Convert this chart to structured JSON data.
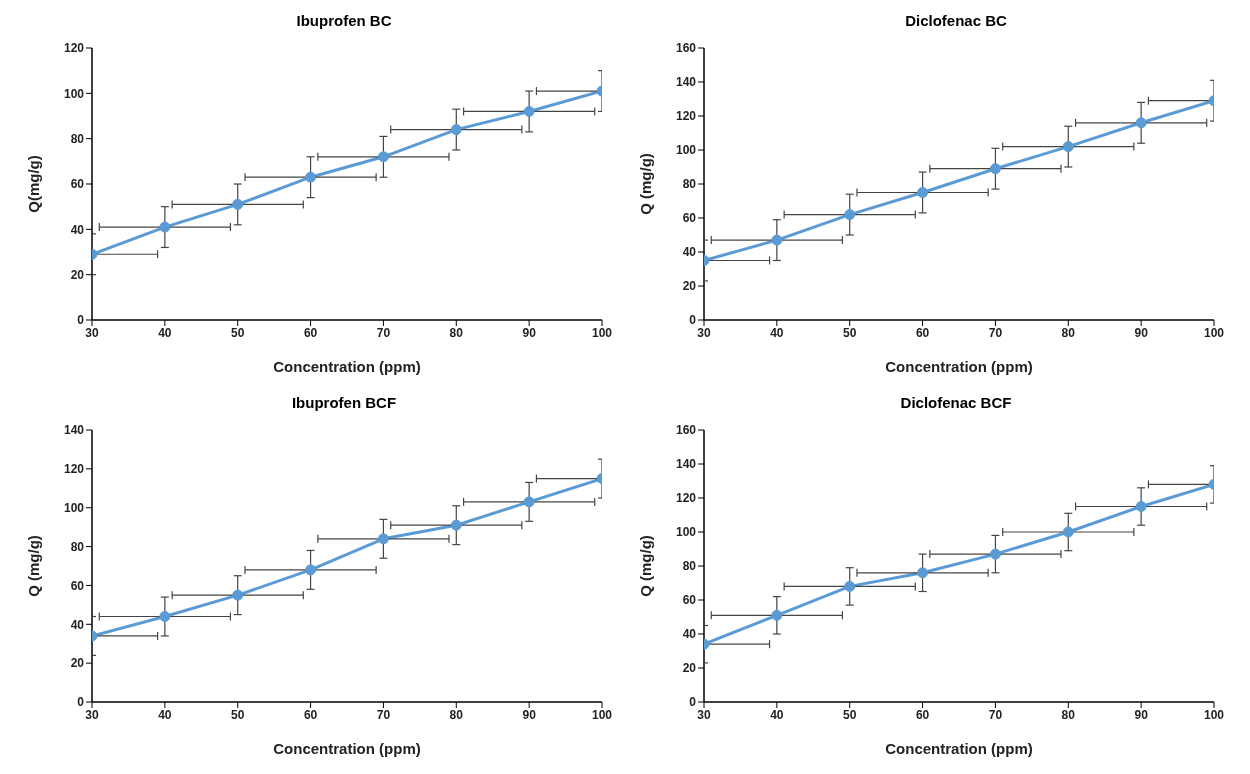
{
  "chart_data": [
    {
      "type": "line",
      "title": "Ibuprofen BC",
      "xlabel": "Concentration (ppm)",
      "ylabel": "Q(mg/g)",
      "x": [
        30,
        40,
        50,
        60,
        70,
        80,
        90,
        100
      ],
      "xlim": [
        30,
        100
      ],
      "xticks": [
        30,
        40,
        50,
        60,
        70,
        80,
        90,
        100
      ],
      "ylim": [
        0,
        120
      ],
      "yticks": [
        0,
        20,
        40,
        60,
        80,
        100,
        120
      ],
      "grid": false,
      "legend": false,
      "marker": "circle",
      "line_style": "solid",
      "series": [
        {
          "color": "#5b9bd5",
          "values": [
            29,
            41,
            51,
            63,
            72,
            84,
            92,
            101
          ],
          "errors": [
            9,
            9,
            9,
            9,
            9,
            9,
            9,
            9
          ],
          "xerrors": [
            [
              30,
              39
            ],
            [
              31,
              49
            ],
            [
              41,
              59
            ],
            [
              51,
              69
            ],
            [
              61,
              79
            ],
            [
              71,
              89
            ],
            [
              81,
              99
            ],
            [
              91,
              100
            ]
          ]
        }
      ]
    },
    {
      "type": "line",
      "title": "Diclofenac BC",
      "xlabel": "Concentration (ppm)",
      "ylabel": "Q (mg/g)",
      "x": [
        30,
        40,
        50,
        60,
        70,
        80,
        90,
        100
      ],
      "xlim": [
        30,
        100
      ],
      "xticks": [
        30,
        40,
        50,
        60,
        70,
        80,
        90,
        100
      ],
      "ylim": [
        0,
        160
      ],
      "yticks": [
        0,
        20,
        40,
        60,
        80,
        100,
        120,
        140,
        160
      ],
      "grid": false,
      "legend": false,
      "marker": "circle",
      "line_style": "solid",
      "series": [
        {
          "color": "#5b9bd5",
          "values": [
            35,
            47,
            62,
            75,
            89,
            102,
            116,
            129
          ],
          "errors": [
            12,
            12,
            12,
            12,
            12,
            12,
            12,
            12
          ],
          "xerrors": [
            [
              30,
              39
            ],
            [
              31,
              49
            ],
            [
              41,
              59
            ],
            [
              51,
              69
            ],
            [
              61,
              79
            ],
            [
              71,
              89
            ],
            [
              81,
              99
            ],
            [
              91,
              100
            ]
          ]
        }
      ]
    },
    {
      "type": "line",
      "title": "Ibuprofen BCF",
      "xlabel": "Concentration (ppm)",
      "ylabel": "Q (mg/g)",
      "x": [
        30,
        40,
        50,
        60,
        70,
        80,
        90,
        100
      ],
      "xlim": [
        30,
        100
      ],
      "xticks": [
        30,
        40,
        50,
        60,
        70,
        80,
        90,
        100
      ],
      "ylim": [
        0,
        140
      ],
      "yticks": [
        0,
        20,
        40,
        60,
        80,
        100,
        120,
        140
      ],
      "grid": false,
      "legend": false,
      "marker": "circle",
      "line_style": "solid",
      "series": [
        {
          "color": "#5b9bd5",
          "values": [
            34,
            44,
            55,
            68,
            84,
            91,
            103,
            115
          ],
          "errors": [
            10,
            10,
            10,
            10,
            10,
            10,
            10,
            10
          ],
          "xerrors": [
            [
              30,
              39
            ],
            [
              31,
              49
            ],
            [
              41,
              59
            ],
            [
              51,
              69
            ],
            [
              61,
              79
            ],
            [
              71,
              89
            ],
            [
              81,
              99
            ],
            [
              91,
              100
            ]
          ]
        }
      ]
    },
    {
      "type": "line",
      "title": "Diclofenac BCF",
      "xlabel": "Concentration (ppm)",
      "ylabel": "Q (mg/g)",
      "x": [
        30,
        40,
        50,
        60,
        70,
        80,
        90,
        100
      ],
      "xlim": [
        30,
        100
      ],
      "xticks": [
        30,
        40,
        50,
        60,
        70,
        80,
        90,
        100
      ],
      "ylim": [
        0,
        160
      ],
      "yticks": [
        0,
        20,
        40,
        60,
        80,
        100,
        120,
        140,
        160
      ],
      "grid": false,
      "legend": false,
      "marker": "circle",
      "line_style": "solid",
      "series": [
        {
          "color": "#5b9bd5",
          "values": [
            34,
            51,
            68,
            76,
            87,
            100,
            115,
            128
          ],
          "errors": [
            11,
            11,
            11,
            11,
            11,
            11,
            11,
            11
          ],
          "xerrors": [
            [
              30,
              39
            ],
            [
              31,
              49
            ],
            [
              41,
              59
            ],
            [
              51,
              69
            ],
            [
              61,
              79
            ],
            [
              71,
              89
            ],
            [
              81,
              99
            ],
            [
              91,
              100
            ]
          ]
        }
      ]
    }
  ]
}
